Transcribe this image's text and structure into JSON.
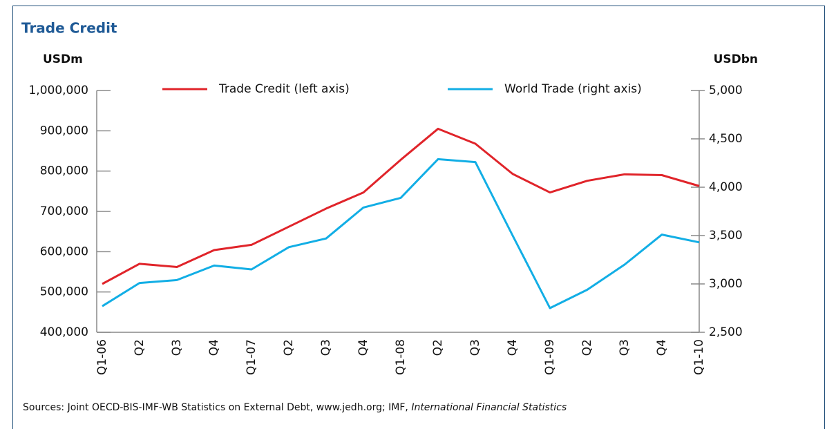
{
  "chart_data": {
    "type": "line",
    "title": "Trade Credit",
    "y_axis_label": "USDm",
    "y2_axis_label": "USDbn",
    "categories": [
      "Q1-06",
      "Q2",
      "Q3",
      "Q4",
      "Q1-07",
      "Q2",
      "Q3",
      "Q4",
      "Q1-08",
      "Q2",
      "Q3",
      "Q4",
      "Q1-09",
      "Q2",
      "Q3",
      "Q4",
      "Q1-10"
    ],
    "series": [
      {
        "name": "Trade Credit (left axis)",
        "color": "#e0242a",
        "axis": "y",
        "values": [
          520000,
          570000,
          562000,
          604000,
          617000,
          662000,
          707000,
          747000,
          828000,
          905000,
          868000,
          793000,
          747000,
          776000,
          792000,
          790000,
          763000
        ]
      },
      {
        "name": "World Trade (right axis)",
        "color": "#12aee5",
        "axis": "y2",
        "values": [
          2770,
          3010,
          3040,
          3190,
          3150,
          3380,
          3470,
          3790,
          3890,
          4290,
          4260,
          3500,
          2750,
          2940,
          3200,
          3510,
          3430
        ]
      }
    ],
    "ylim": [
      400000,
      1000000
    ],
    "yticks": [
      {
        "value": 400000,
        "label": "400,000"
      },
      {
        "value": 500000,
        "label": "500,000"
      },
      {
        "value": 600000,
        "label": "600,000"
      },
      {
        "value": 700000,
        "label": "700,000"
      },
      {
        "value": 800000,
        "label": "800,000"
      },
      {
        "value": 900000,
        "label": "900,000"
      },
      {
        "value": 1000000,
        "label": "1,000,000"
      }
    ],
    "y2lim": [
      2500,
      5000
    ],
    "y2ticks": [
      {
        "value": 2500,
        "label": "2,500"
      },
      {
        "value": 3000,
        "label": "3,000"
      },
      {
        "value": 3500,
        "label": "3,500"
      },
      {
        "value": 4000,
        "label": "4,000"
      },
      {
        "value": 4500,
        "label": "4,500"
      },
      {
        "value": 5000,
        "label": "5,000"
      }
    ],
    "source_label": "Sources:",
    "source_text": "Joint OECD-BIS-IMF-WB Statistics on External Debt, www.jedh.org; IMF, ",
    "source_italic": "International Financial Statistics"
  }
}
